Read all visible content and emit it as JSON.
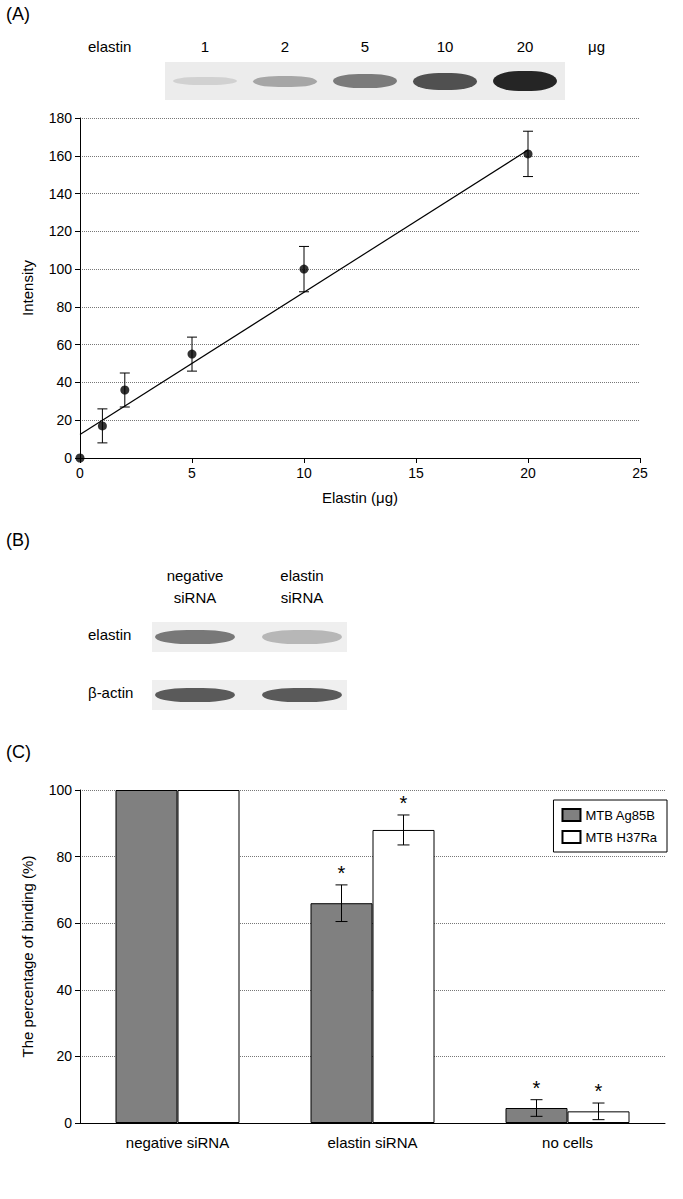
{
  "panel_labels": [
    "(A)",
    "(B)",
    "(C)"
  ],
  "gel": {
    "label": "elastin",
    "lanes": [
      "1",
      "2",
      "5",
      "10",
      "20"
    ],
    "unit": "μg"
  },
  "blot": {
    "columns": [
      "negative siRNA",
      "elastin siRNA"
    ],
    "rows": [
      "elastin",
      "β-actin"
    ]
  },
  "chart_data": [
    {
      "type": "scatter",
      "xlabel": "Elastin (μg)",
      "ylabel": "Intensity",
      "xlim": [
        0,
        25
      ],
      "xticks": [
        0,
        5,
        10,
        15,
        20,
        25
      ],
      "ylim": [
        0,
        180
      ],
      "yticks": [
        0,
        20,
        40,
        60,
        80,
        100,
        120,
        140,
        160,
        180
      ],
      "grid": true,
      "series": [
        {
          "type": "scatter",
          "marker": "circle",
          "color": "#000000",
          "x": [
            0,
            1,
            2,
            5,
            10,
            20
          ],
          "values": [
            0,
            17,
            36,
            55,
            100,
            161
          ],
          "errors": [
            0,
            9,
            9,
            9,
            12,
            12
          ]
        },
        {
          "type": "line",
          "line_style": "solid",
          "color": "#000000",
          "x": [
            0,
            20
          ],
          "values": [
            12.5,
            163
          ]
        }
      ]
    },
    {
      "type": "bar",
      "ylabel": "The percentage of binding (%)",
      "categories": [
        "negative siRNA",
        "elastin siRNA",
        "no cells"
      ],
      "ylim": [
        0,
        100
      ],
      "yticks": [
        0,
        20,
        40,
        60,
        80,
        100
      ],
      "grid": true,
      "legend": "top-right",
      "series": [
        {
          "name": "MTB Ag85B",
          "color": "#808080",
          "values": [
            100,
            66,
            4.5
          ],
          "errors": [
            0,
            5.5,
            2.5
          ],
          "annotations": [
            null,
            "*",
            "*"
          ]
        },
        {
          "name": "MTB H37Ra",
          "color": "#ffffff",
          "values": [
            100,
            88,
            3.5
          ],
          "errors": [
            0,
            4.5,
            2.5
          ],
          "annotations": [
            null,
            "*",
            "*"
          ]
        }
      ]
    }
  ]
}
